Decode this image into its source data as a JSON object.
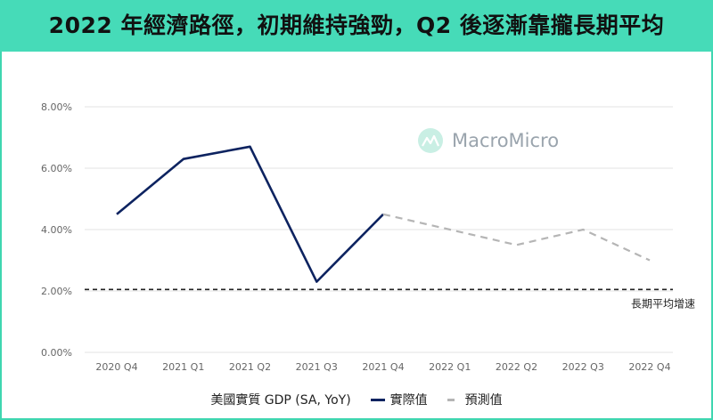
{
  "title": "2022 年經濟路徑，初期維持強勁，Q2 後逐漸靠攏長期平均",
  "watermark": "MacroMicro",
  "colors": {
    "header_bg": "#46dbb8",
    "actual": "#0d2360",
    "forecast": "#b5b5b5",
    "reference": "#222222",
    "grid": "#e3e3e3"
  },
  "legend": {
    "title": "美國實質 GDP (SA, YoY)",
    "actual_label": "實際值",
    "forecast_label": "預測值"
  },
  "chart_data": {
    "type": "line",
    "categories": [
      "2020 Q4",
      "2021 Q1",
      "2021 Q2",
      "2021 Q3",
      "2021 Q4",
      "2022 Q1",
      "2022 Q2",
      "2022 Q3",
      "2022 Q4"
    ],
    "series": [
      {
        "name": "實際值",
        "values": [
          4.5,
          6.3,
          6.7,
          2.3,
          4.5,
          null,
          null,
          null,
          null
        ]
      },
      {
        "name": "預測值",
        "values": [
          null,
          null,
          null,
          null,
          4.5,
          4.0,
          3.5,
          4.0,
          3.0
        ]
      }
    ],
    "reference_line": {
      "label": "長期平均增速",
      "value": 2.05
    },
    "y_ticks": [
      "0.00%",
      "2.00%",
      "4.00%",
      "6.00%",
      "8.00%"
    ],
    "ylim": [
      0,
      8
    ],
    "grid": true,
    "legend_position": "bottom"
  }
}
